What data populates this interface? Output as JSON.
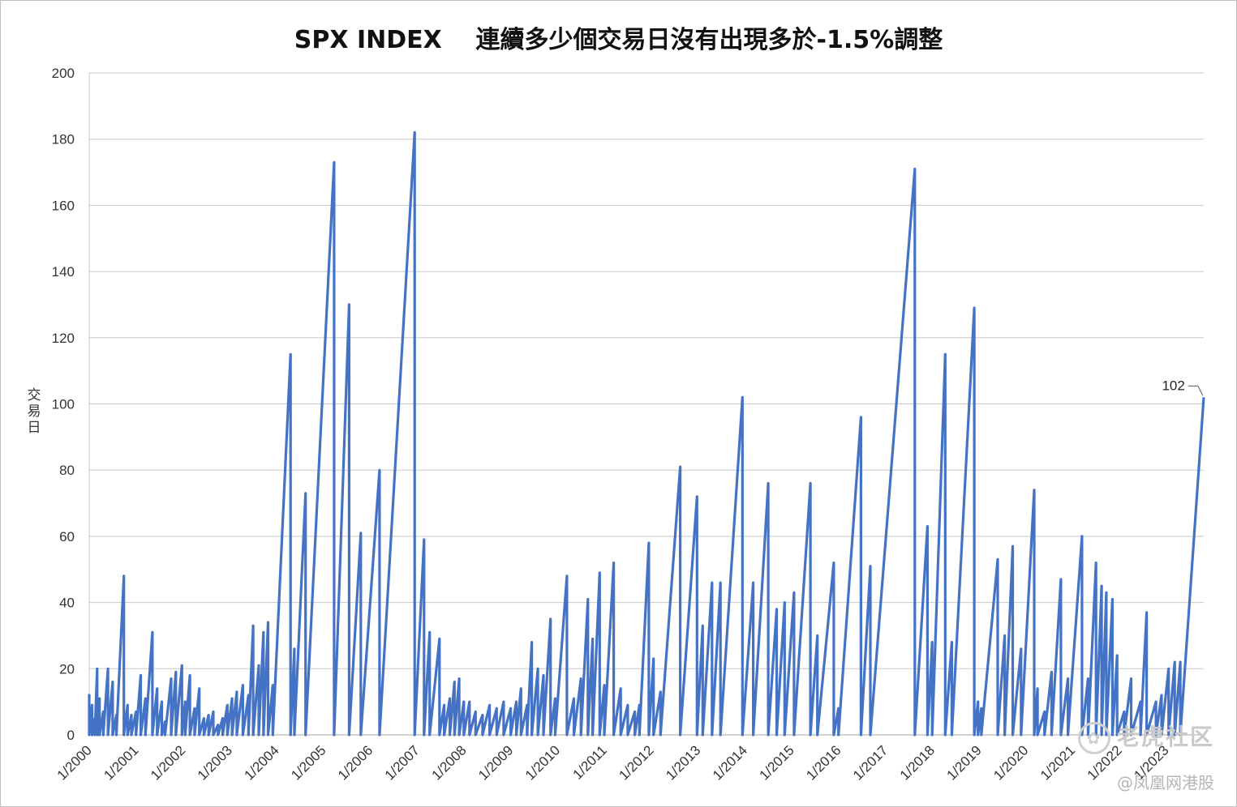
{
  "chart_data": {
    "type": "line",
    "title": "SPX INDEX    連續多少個交易日沒有出現多於-1.5%調整",
    "xlabel": "",
    "ylabel": "交易日",
    "ylim": [
      0,
      200
    ],
    "yticks": [
      0,
      20,
      40,
      60,
      80,
      100,
      120,
      140,
      160,
      180,
      200
    ],
    "xlim": [
      2000.0,
      2023.8
    ],
    "xticks": [
      {
        "x": 2000,
        "label": "1/2000"
      },
      {
        "x": 2001,
        "label": "1/2001"
      },
      {
        "x": 2002,
        "label": "1/2002"
      },
      {
        "x": 2003,
        "label": "1/2003"
      },
      {
        "x": 2004,
        "label": "1/2004"
      },
      {
        "x": 2005,
        "label": "1/2005"
      },
      {
        "x": 2006,
        "label": "1/2006"
      },
      {
        "x": 2007,
        "label": "1/2007"
      },
      {
        "x": 2008,
        "label": "1/2008"
      },
      {
        "x": 2009,
        "label": "1/2009"
      },
      {
        "x": 2010,
        "label": "1/2010"
      },
      {
        "x": 2011,
        "label": "1/2011"
      },
      {
        "x": 2012,
        "label": "1/2012"
      },
      {
        "x": 2013,
        "label": "1/2013"
      },
      {
        "x": 2014,
        "label": "1/2014"
      },
      {
        "x": 2015,
        "label": "1/2015"
      },
      {
        "x": 2016,
        "label": "1/2016"
      },
      {
        "x": 2017,
        "label": "1/2017"
      },
      {
        "x": 2018,
        "label": "1/2018"
      },
      {
        "x": 2019,
        "label": "1/2019"
      },
      {
        "x": 2020,
        "label": "1/2020"
      },
      {
        "x": 2021,
        "label": "1/2021"
      },
      {
        "x": 2022,
        "label": "1/2022"
      },
      {
        "x": 2023,
        "label": "1/2023"
      }
    ],
    "grid": true,
    "legend": "none",
    "color": "#4472C4",
    "annotations": [
      {
        "label": "102",
        "x": 2023.78,
        "y": 102
      }
    ],
    "cycles": [
      [
        2000.0,
        12
      ],
      [
        2000.06,
        9
      ],
      [
        2000.12,
        5
      ],
      [
        2000.17,
        20
      ],
      [
        2000.22,
        11
      ],
      [
        2000.3,
        7
      ],
      [
        2000.4,
        20
      ],
      [
        2000.5,
        16
      ],
      [
        2000.58,
        6
      ],
      [
        2000.74,
        48
      ],
      [
        2000.82,
        9
      ],
      [
        2000.9,
        6
      ],
      [
        2001.0,
        7
      ],
      [
        2001.1,
        18
      ],
      [
        2001.2,
        11
      ],
      [
        2001.35,
        31
      ],
      [
        2001.45,
        14
      ],
      [
        2001.55,
        10
      ],
      [
        2001.62,
        4
      ],
      [
        2001.75,
        17
      ],
      [
        2001.85,
        19
      ],
      [
        2001.98,
        21
      ],
      [
        2002.05,
        10
      ],
      [
        2002.15,
        18
      ],
      [
        2002.25,
        8
      ],
      [
        2002.35,
        14
      ],
      [
        2002.45,
        5
      ],
      [
        2002.55,
        6
      ],
      [
        2002.65,
        7
      ],
      [
        2002.75,
        3
      ],
      [
        2002.85,
        5
      ],
      [
        2002.95,
        9
      ],
      [
        2003.05,
        11
      ],
      [
        2003.15,
        13
      ],
      [
        2003.28,
        15
      ],
      [
        2003.4,
        12
      ],
      [
        2003.5,
        33
      ],
      [
        2003.62,
        21
      ],
      [
        2003.72,
        31
      ],
      [
        2003.82,
        34
      ],
      [
        2003.92,
        15
      ],
      [
        2004.3,
        115
      ],
      [
        2004.38,
        26
      ],
      [
        2004.62,
        73
      ],
      [
        2005.23,
        173
      ],
      [
        2005.55,
        130
      ],
      [
        2005.8,
        61
      ],
      [
        2006.2,
        80
      ],
      [
        2006.95,
        182
      ],
      [
        2007.15,
        59
      ],
      [
        2007.27,
        31
      ],
      [
        2007.48,
        29
      ],
      [
        2007.58,
        9
      ],
      [
        2007.7,
        11
      ],
      [
        2007.8,
        16
      ],
      [
        2007.9,
        17
      ],
      [
        2008.0,
        10
      ],
      [
        2008.12,
        10
      ],
      [
        2008.25,
        7
      ],
      [
        2008.4,
        6
      ],
      [
        2008.55,
        9
      ],
      [
        2008.7,
        8
      ],
      [
        2008.85,
        10
      ],
      [
        2009.0,
        8
      ],
      [
        2009.12,
        10
      ],
      [
        2009.22,
        14
      ],
      [
        2009.35,
        9
      ],
      [
        2009.45,
        28
      ],
      [
        2009.58,
        20
      ],
      [
        2009.7,
        18
      ],
      [
        2009.85,
        35
      ],
      [
        2009.95,
        11
      ],
      [
        2010.2,
        48
      ],
      [
        2010.35,
        11
      ],
      [
        2010.5,
        17
      ],
      [
        2010.65,
        41
      ],
      [
        2010.75,
        29
      ],
      [
        2010.9,
        49
      ],
      [
        2011.0,
        15
      ],
      [
        2011.2,
        52
      ],
      [
        2011.35,
        14
      ],
      [
        2011.5,
        9
      ],
      [
        2011.65,
        7
      ],
      [
        2011.75,
        9
      ],
      [
        2011.95,
        58
      ],
      [
        2012.05,
        23
      ],
      [
        2012.2,
        13
      ],
      [
        2012.62,
        81
      ],
      [
        2012.98,
        72
      ],
      [
        2013.1,
        33
      ],
      [
        2013.3,
        46
      ],
      [
        2013.48,
        46
      ],
      [
        2013.95,
        102
      ],
      [
        2014.18,
        46
      ],
      [
        2014.5,
        76
      ],
      [
        2014.68,
        38
      ],
      [
        2014.85,
        40
      ],
      [
        2015.05,
        43
      ],
      [
        2015.4,
        76
      ],
      [
        2015.55,
        30
      ],
      [
        2015.9,
        52
      ],
      [
        2016.0,
        8
      ],
      [
        2016.48,
        96
      ],
      [
        2016.68,
        51
      ],
      [
        2017.63,
        171
      ],
      [
        2017.9,
        63
      ],
      [
        2018.0,
        28
      ],
      [
        2018.28,
        115
      ],
      [
        2018.42,
        28
      ],
      [
        2018.9,
        129
      ],
      [
        2018.98,
        10
      ],
      [
        2019.05,
        8
      ],
      [
        2019.4,
        53
      ],
      [
        2019.55,
        30
      ],
      [
        2019.72,
        57
      ],
      [
        2019.9,
        26
      ],
      [
        2020.18,
        74
      ],
      [
        2020.25,
        14
      ],
      [
        2020.4,
        7
      ],
      [
        2020.55,
        19
      ],
      [
        2020.75,
        47
      ],
      [
        2020.9,
        17
      ],
      [
        2021.2,
        60
      ],
      [
        2021.33,
        17
      ],
      [
        2021.5,
        52
      ],
      [
        2021.62,
        45
      ],
      [
        2021.72,
        43
      ],
      [
        2021.85,
        41
      ],
      [
        2021.95,
        24
      ],
      [
        2022.1,
        7
      ],
      [
        2022.25,
        17
      ],
      [
        2022.45,
        10
      ],
      [
        2022.58,
        37
      ],
      [
        2022.78,
        10
      ],
      [
        2022.9,
        12
      ],
      [
        2023.05,
        20
      ],
      [
        2023.18,
        22
      ],
      [
        2023.3,
        22
      ],
      [
        2023.8,
        102
      ]
    ]
  },
  "watermark": {
    "text1": "老虎社区",
    "text2": "@凤凰网港股"
  }
}
